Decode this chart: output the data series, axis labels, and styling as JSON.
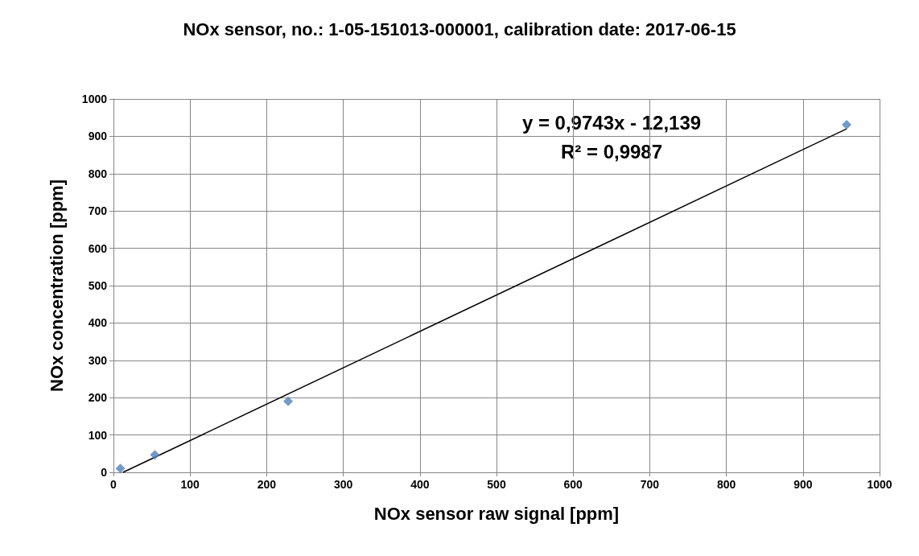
{
  "chart_data": {
    "type": "scatter",
    "title": "NOx sensor, no.: 1-05-151013-000001, calibration date: 2017-06-15",
    "xlabel": "NOx sensor raw signal [ppm]",
    "ylabel": "NOx concentration [ppm]",
    "series": [
      {
        "color": "#4f81bd",
        "x": [
          9,
          54,
          228,
          957
        ],
        "values": [
          10,
          47,
          190,
          931
        ],
        "marker": "diamond"
      },
      {
        "type": "line",
        "color": "#000000",
        "x": [
          12.5,
          957
        ],
        "values": [
          0,
          920
        ],
        "marker": "none",
        "line_style": "solid"
      }
    ],
    "xlim": [
      0,
      1000
    ],
    "xticks": [
      0,
      100,
      200,
      300,
      400,
      500,
      600,
      700,
      800,
      900,
      1000
    ],
    "ylim": [
      0,
      1000
    ],
    "yticks": [
      0,
      100,
      200,
      300,
      400,
      500,
      600,
      700,
      800,
      900,
      1000
    ],
    "grid": true,
    "annotations": [
      "y = 0,9743x - 12,139",
      "R² = 0,9987"
    ]
  }
}
